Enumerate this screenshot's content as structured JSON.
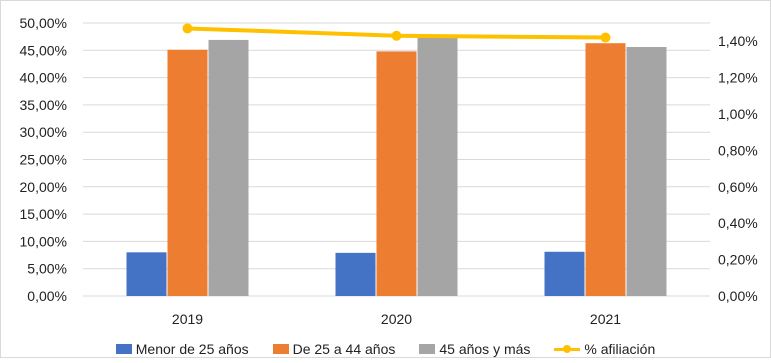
{
  "chart_data": {
    "type": "bar",
    "categories": [
      "2019",
      "2020",
      "2021"
    ],
    "series": [
      {
        "name": "Menor de 25 años",
        "type": "bar",
        "axis": "left",
        "color": "#4472C4",
        "values": [
          8.0,
          7.9,
          8.1
        ]
      },
      {
        "name": "De 25 a 44 años",
        "type": "bar",
        "axis": "left",
        "color": "#ED7D31",
        "values": [
          45.1,
          44.8,
          46.3
        ]
      },
      {
        "name": "45 años y más",
        "type": "bar",
        "axis": "left",
        "color": "#A5A5A5",
        "values": [
          46.9,
          47.3,
          45.6
        ]
      },
      {
        "name": "% afiliación",
        "type": "line",
        "axis": "right",
        "color": "#FFC000",
        "values": [
          1.47,
          1.43,
          1.42
        ]
      }
    ],
    "y_left": {
      "min": 0,
      "max": 50,
      "step": 5
    },
    "y_right": {
      "min": 0,
      "max": 1.5,
      "step": 0.2
    },
    "y_left_ticks": [
      "0,00%",
      "5,00%",
      "10,00%",
      "15,00%",
      "20,00%",
      "25,00%",
      "30,00%",
      "35,00%",
      "40,00%",
      "45,00%",
      "50,00%"
    ],
    "y_right_ticks": [
      "0,00%",
      "0,20%",
      "0,40%",
      "0,60%",
      "0,80%",
      "1,00%",
      "1,20%",
      "1,40%"
    ],
    "grid": true,
    "legend_position": "bottom"
  }
}
